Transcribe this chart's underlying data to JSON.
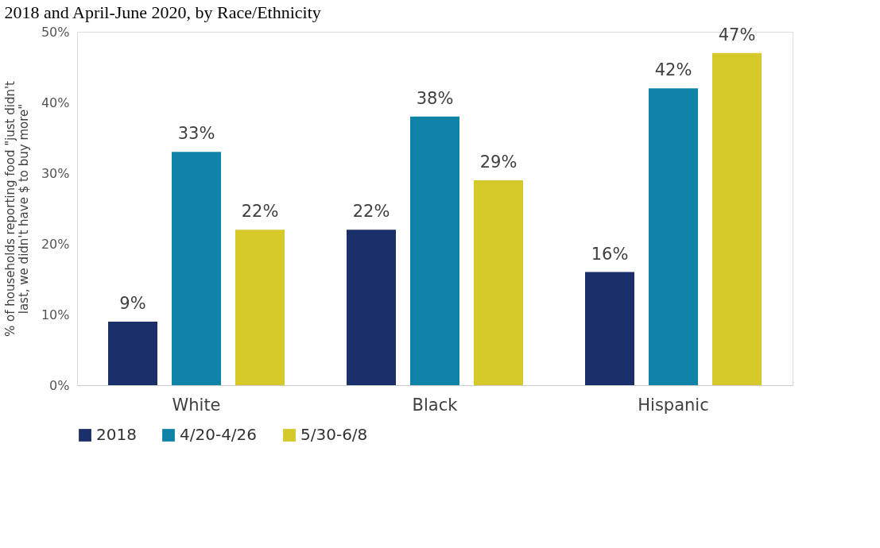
{
  "chart_data": {
    "type": "bar",
    "title": "2018 and April-June 2020, by Race/Ethnicity",
    "ylabel": "% of households reporting food \"just didn't\nlast, we didn't have $ to buy more\"",
    "categories": [
      "White",
      "Black",
      "Hispanic"
    ],
    "series": [
      {
        "name": "2018",
        "color": "#1b2f6b",
        "values": [
          9,
          22,
          16
        ],
        "value_labels": [
          "9%",
          "22%",
          "16%"
        ]
      },
      {
        "name": "4/20-4/26",
        "color": "#0f82a8",
        "values": [
          33,
          38,
          42
        ],
        "value_labels": [
          "33%",
          "38%",
          "42%"
        ]
      },
      {
        "name": "5/30-6/8",
        "color": "#d6c92a",
        "values": [
          22,
          29,
          47
        ],
        "value_labels": [
          "22%",
          "29%",
          "47%"
        ]
      }
    ],
    "ylim": [
      0,
      50
    ],
    "yticks": [
      {
        "value": 0,
        "label": "0%"
      },
      {
        "value": 10,
        "label": "10%"
      },
      {
        "value": 20,
        "label": "20%"
      },
      {
        "value": 30,
        "label": "30%"
      },
      {
        "value": 40,
        "label": "40%"
      },
      {
        "value": 50,
        "label": "50%"
      }
    ],
    "grid": false,
    "legend": "bottom"
  }
}
